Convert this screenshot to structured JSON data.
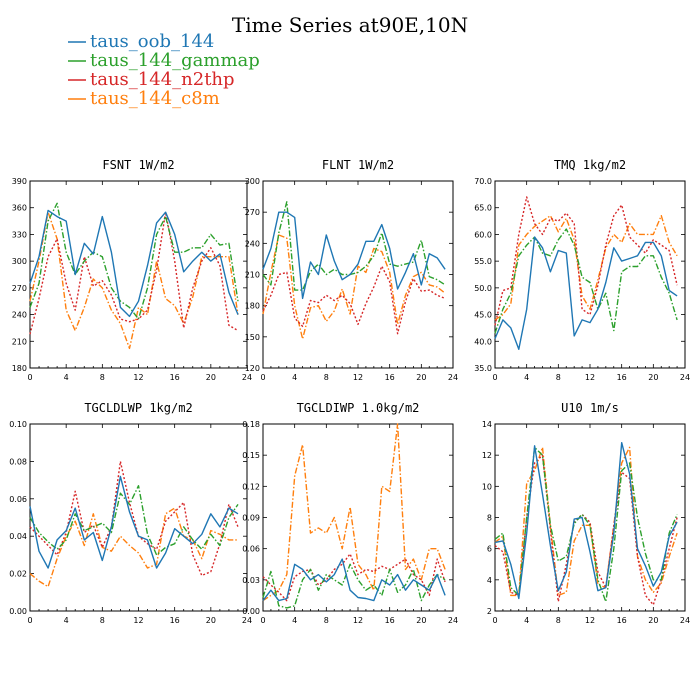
{
  "figure": {
    "title": "Time Series at90E,10N"
  },
  "legend": [
    {
      "name": "taus_oob_144",
      "color": "#1f77b4",
      "dash": "solid"
    },
    {
      "name": "taus_144_gammap",
      "color": "#2ca02c",
      "dash": "dashdot"
    },
    {
      "name": "taus_144_n2thp",
      "color": "#d62728",
      "dash": "dot"
    },
    {
      "name": "taus_144_c8m",
      "color": "#ff7f0e",
      "dash": "dashdot"
    }
  ],
  "chart_data": [
    {
      "type": "line",
      "title": "FSNT   1W/m2",
      "x": [
        0,
        1,
        2,
        3,
        4,
        5,
        6,
        7,
        8,
        9,
        10,
        11,
        12,
        13,
        14,
        15,
        16,
        17,
        18,
        19,
        20,
        21,
        22,
        23
      ],
      "xlim": [
        0,
        24
      ],
      "xticks": [
        0,
        4,
        8,
        12,
        16,
        20,
        24
      ],
      "ylim": [
        180,
        390
      ],
      "yticks": [
        "180",
        "210",
        "240",
        "270",
        "300",
        "330",
        "360",
        "390"
      ],
      "series": [
        {
          "name": "taus_oob_144",
          "values": [
            275,
            305,
            357,
            350,
            345,
            285,
            320,
            308,
            350,
            310,
            248,
            238,
            255,
            295,
            343,
            355,
            330,
            288,
            300,
            310,
            300,
            308,
            265,
            240
          ]
        },
        {
          "name": "taus_144_gammap",
          "values": [
            248,
            275,
            345,
            365,
            310,
            285,
            300,
            310,
            305,
            270,
            255,
            248,
            235,
            270,
            330,
            350,
            310,
            310,
            315,
            315,
            330,
            318,
            320,
            255
          ]
        },
        {
          "name": "taus_144_n2thp",
          "values": [
            218,
            258,
            305,
            325,
            275,
            245,
            305,
            272,
            278,
            262,
            235,
            232,
            235,
            245,
            290,
            355,
            300,
            225,
            270,
            300,
            315,
            295,
            228,
            222
          ]
        },
        {
          "name": "taus_144_c8m",
          "values": [
            255,
            300,
            355,
            325,
            245,
            222,
            248,
            280,
            270,
            245,
            230,
            202,
            248,
            240,
            300,
            258,
            250,
            230,
            260,
            305,
            305,
            305,
            305,
            240
          ]
        }
      ]
    },
    {
      "type": "line",
      "title": "FLNT   1W/m2",
      "x": [
        0,
        1,
        2,
        3,
        4,
        5,
        6,
        7,
        8,
        9,
        10,
        11,
        12,
        13,
        14,
        15,
        16,
        17,
        18,
        19,
        20,
        21,
        22,
        23
      ],
      "xlim": [
        0,
        24
      ],
      "xticks": [
        0,
        4,
        8,
        12,
        16,
        20,
        24
      ],
      "ylim": [
        120,
        300
      ],
      "yticks": [
        "120",
        "150",
        "180",
        "210",
        "240",
        "270",
        "300"
      ],
      "series": [
        {
          "name": "taus_oob_144",
          "values": [
            215,
            235,
            270,
            270,
            265,
            187,
            222,
            210,
            248,
            223,
            205,
            210,
            220,
            242,
            242,
            258,
            235,
            196,
            212,
            230,
            200,
            230,
            226,
            215
          ]
        },
        {
          "name": "taus_144_gammap",
          "values": [
            210,
            200,
            250,
            280,
            195,
            195,
            213,
            220,
            210,
            215,
            210,
            210,
            212,
            218,
            228,
            250,
            220,
            218,
            220,
            222,
            243,
            208,
            205,
            200
          ]
        },
        {
          "name": "taus_144_n2thp",
          "values": [
            175,
            190,
            210,
            212,
            168,
            160,
            185,
            183,
            190,
            185,
            190,
            182,
            162,
            182,
            198,
            218,
            203,
            153,
            184,
            206,
            194,
            195,
            190,
            187
          ]
        },
        {
          "name": "taus_144_c8m",
          "values": [
            172,
            212,
            248,
            245,
            180,
            148,
            178,
            180,
            165,
            175,
            196,
            172,
            218,
            212,
            235,
            232,
            212,
            162,
            190,
            208,
            212,
            200,
            198,
            192
          ]
        }
      ]
    },
    {
      "type": "line",
      "title": "TMQ   1kg/m2",
      "x": [
        0,
        1,
        2,
        3,
        4,
        5,
        6,
        7,
        8,
        9,
        10,
        11,
        12,
        13,
        14,
        15,
        16,
        17,
        18,
        19,
        20,
        21,
        22,
        23
      ],
      "xlim": [
        0,
        24
      ],
      "xticks": [
        0,
        4,
        8,
        12,
        16,
        20,
        24
      ],
      "ylim": [
        35.0,
        70.0
      ],
      "yticks": [
        "35.0",
        "40.0",
        "45.0",
        "50.0",
        "55.0",
        "60.0",
        "65.0",
        "70.0"
      ],
      "series": [
        {
          "name": "taus_oob_144",
          "values": [
            40.5,
            44.0,
            42.5,
            38.5,
            46.0,
            59.5,
            57.5,
            53.0,
            57.0,
            56.5,
            41.0,
            44.0,
            43.5,
            46.0,
            51.0,
            57.5,
            55.0,
            55.5,
            56.0,
            58.5,
            58.5,
            56.0,
            49.5,
            48.5
          ]
        },
        {
          "name": "taus_144_gammap",
          "values": [
            41.5,
            46.0,
            49.0,
            56.0,
            58.0,
            59.5,
            56.5,
            56.0,
            59.0,
            61.0,
            58.0,
            52.0,
            51.0,
            46.0,
            49.0,
            42.0,
            53.0,
            54.0,
            54.0,
            56.0,
            56.0,
            52.0,
            49.0,
            44.0
          ]
        },
        {
          "name": "taus_144_n2thp",
          "values": [
            43.0,
            49.5,
            50.0,
            60.0,
            67.0,
            62.0,
            60.0,
            63.0,
            62.5,
            64.0,
            62.0,
            46.0,
            45.0,
            50.5,
            58.0,
            63.5,
            65.5,
            59.5,
            58.0,
            56.5,
            59.0,
            58.0,
            57.0,
            50.5
          ]
        },
        {
          "name": "taus_144_c8m",
          "values": [
            44.0,
            45.0,
            47.0,
            58.0,
            60.0,
            61.5,
            62.5,
            63.5,
            60.5,
            63.0,
            59.0,
            48.5,
            46.0,
            51.5,
            57.5,
            60.0,
            58.5,
            62.0,
            60.0,
            60.0,
            60.0,
            63.5,
            58.5,
            56.0
          ]
        }
      ]
    },
    {
      "type": "line",
      "title": "TGCLDLWP   1kg/m2",
      "x": [
        0,
        1,
        2,
        3,
        4,
        5,
        6,
        7,
        8,
        9,
        10,
        11,
        12,
        13,
        14,
        15,
        16,
        17,
        18,
        19,
        20,
        21,
        22,
        23
      ],
      "xlim": [
        0,
        24
      ],
      "xticks": [
        0,
        4,
        8,
        12,
        16,
        20,
        24
      ],
      "ylim": [
        0.0,
        0.1
      ],
      "yticks": [
        "0.00",
        "0.02",
        "0.04",
        "0.06",
        "0.08",
        "0.10"
      ],
      "series": [
        {
          "name": "taus_oob_144",
          "values": [
            0.056,
            0.032,
            0.023,
            0.038,
            0.043,
            0.055,
            0.038,
            0.042,
            0.027,
            0.045,
            0.072,
            0.053,
            0.04,
            0.038,
            0.023,
            0.031,
            0.044,
            0.04,
            0.036,
            0.041,
            0.052,
            0.045,
            0.055,
            0.052
          ]
        },
        {
          "name": "taus_144_gammap",
          "values": [
            0.05,
            0.042,
            0.037,
            0.033,
            0.038,
            0.052,
            0.043,
            0.045,
            0.047,
            0.042,
            0.063,
            0.057,
            0.067,
            0.041,
            0.03,
            0.034,
            0.036,
            0.045,
            0.038,
            0.033,
            0.041,
            0.035,
            0.05,
            0.057
          ]
        },
        {
          "name": "taus_144_n2thp",
          "values": [
            0.045,
            0.04,
            0.035,
            0.03,
            0.042,
            0.064,
            0.042,
            0.046,
            0.034,
            0.045,
            0.08,
            0.058,
            0.04,
            0.036,
            0.033,
            0.048,
            0.053,
            0.058,
            0.03,
            0.019,
            0.021,
            0.036,
            0.057,
            0.045
          ]
        },
        {
          "name": "taus_144_c8m",
          "values": [
            0.02,
            0.016,
            0.013,
            0.028,
            0.04,
            0.048,
            0.035,
            0.052,
            0.034,
            0.032,
            0.04,
            0.035,
            0.031,
            0.023,
            0.025,
            0.052,
            0.055,
            0.04,
            0.038,
            0.028,
            0.043,
            0.041,
            0.038,
            0.038
          ]
        }
      ]
    },
    {
      "type": "line",
      "title": "TGCLDIWP   1.0kg/m2",
      "x": [
        0,
        1,
        2,
        3,
        4,
        5,
        6,
        7,
        8,
        9,
        10,
        11,
        12,
        13,
        14,
        15,
        16,
        17,
        18,
        19,
        20,
        21,
        22,
        23
      ],
      "xlim": [
        0,
        24
      ],
      "xticks": [
        0,
        4,
        8,
        12,
        16,
        20,
        24
      ],
      "ylim": [
        0.0,
        0.18
      ],
      "yticks": [
        "0.00",
        "0.03",
        "0.06",
        "0.09",
        "0.12",
        "0.15",
        "0.18"
      ],
      "series": [
        {
          "name": "taus_oob_144",
          "values": [
            0.01,
            0.02,
            0.01,
            0.012,
            0.045,
            0.04,
            0.03,
            0.035,
            0.028,
            0.035,
            0.05,
            0.02,
            0.013,
            0.012,
            0.01,
            0.03,
            0.025,
            0.035,
            0.02,
            0.03,
            0.025,
            0.02,
            0.035,
            0.015
          ]
        },
        {
          "name": "taus_144_gammap",
          "values": [
            0.013,
            0.038,
            0.005,
            0.003,
            0.005,
            0.03,
            0.04,
            0.02,
            0.035,
            0.03,
            0.025,
            0.045,
            0.03,
            0.02,
            0.025,
            0.015,
            0.04,
            0.018,
            0.025,
            0.04,
            0.01,
            0.025,
            0.035,
            0.03
          ]
        },
        {
          "name": "taus_144_n2thp",
          "values": [
            0.033,
            0.025,
            0.018,
            0.01,
            0.033,
            0.038,
            0.04,
            0.025,
            0.03,
            0.04,
            0.045,
            0.055,
            0.035,
            0.04,
            0.038,
            0.043,
            0.04,
            0.045,
            0.05,
            0.035,
            0.03,
            0.015,
            0.05,
            0.028
          ]
        },
        {
          "name": "taus_144_c8m",
          "values": [
            0.01,
            0.015,
            0.02,
            0.035,
            0.13,
            0.16,
            0.075,
            0.08,
            0.075,
            0.09,
            0.06,
            0.1,
            0.045,
            0.035,
            0.02,
            0.12,
            0.115,
            0.18,
            0.04,
            0.05,
            0.03,
            0.06,
            0.06,
            0.04
          ]
        }
      ]
    },
    {
      "type": "line",
      "title": "U10   1m/s",
      "x": [
        0,
        1,
        2,
        3,
        4,
        5,
        6,
        7,
        8,
        9,
        10,
        11,
        12,
        13,
        14,
        15,
        16,
        17,
        18,
        19,
        20,
        21,
        22,
        23
      ],
      "xlim": [
        0,
        24
      ],
      "xticks": [
        0,
        4,
        8,
        12,
        16,
        20,
        24
      ],
      "ylim": [
        2,
        14
      ],
      "yticks": [
        "2",
        "4",
        "6",
        "8",
        "10",
        "12",
        "14"
      ],
      "series": [
        {
          "name": "taus_oob_144",
          "values": [
            6.4,
            6.5,
            5.0,
            2.8,
            7.0,
            12.6,
            9.5,
            6.2,
            3.3,
            4.5,
            7.9,
            8.0,
            5.8,
            3.3,
            3.5,
            7.0,
            12.8,
            10.8,
            6.0,
            4.9,
            3.6,
            4.5,
            6.8,
            7.7
          ]
        },
        {
          "name": "taus_144_gammap",
          "values": [
            6.6,
            7.0,
            3.5,
            3.0,
            8.0,
            12.5,
            12.0,
            7.5,
            5.2,
            5.5,
            7.6,
            8.2,
            7.5,
            4.0,
            2.6,
            6.0,
            11.0,
            11.5,
            8.0,
            5.7,
            4.0,
            4.0,
            7.0,
            8.2
          ]
        },
        {
          "name": "taus_144_n2thp",
          "values": [
            6.2,
            5.8,
            3.2,
            3.0,
            8.0,
            11.5,
            12.0,
            7.2,
            2.6,
            5.0,
            7.7,
            8.2,
            7.7,
            4.5,
            3.5,
            7.5,
            10.9,
            10.5,
            5.5,
            3.0,
            2.4,
            4.0,
            6.0,
            8.0
          ]
        },
        {
          "name": "taus_144_c8m",
          "values": [
            6.4,
            6.8,
            3.0,
            3.0,
            10.2,
            11.0,
            12.5,
            7.5,
            3.0,
            3.2,
            6.5,
            7.5,
            7.5,
            3.7,
            3.5,
            7.5,
            11.5,
            12.5,
            5.5,
            4.0,
            3.2,
            3.8,
            5.5,
            7.0
          ]
        }
      ]
    }
  ]
}
